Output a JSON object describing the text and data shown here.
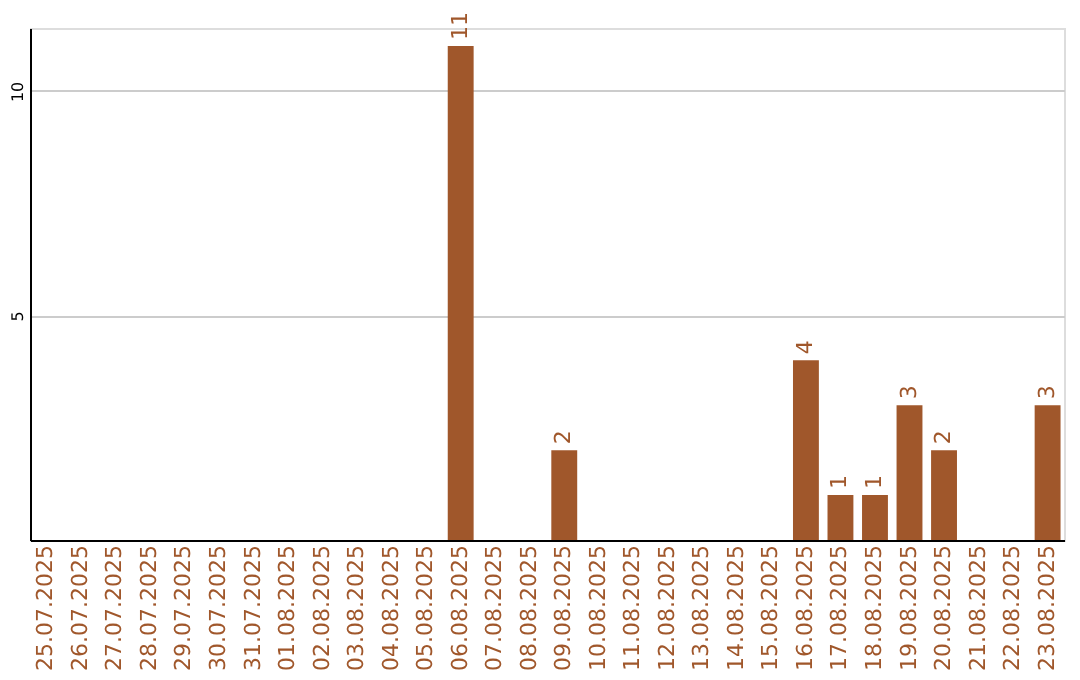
{
  "chart_data": {
    "type": "bar",
    "categories": [
      "25.07.2025",
      "26.07.2025",
      "27.07.2025",
      "28.07.2025",
      "29.07.2025",
      "30.07.2025",
      "31.07.2025",
      "01.08.2025",
      "02.08.2025",
      "03.08.2025",
      "04.08.2025",
      "05.08.2025",
      "06.08.2025",
      "07.08.2025",
      "08.08.2025",
      "09.08.2025",
      "10.08.2025",
      "11.08.2025",
      "12.08.2025",
      "13.08.2025",
      "14.08.2025",
      "15.08.2025",
      "16.08.2025",
      "17.08.2025",
      "18.08.2025",
      "19.08.2025",
      "20.08.2025",
      "21.08.2025",
      "22.08.2025",
      "23.08.2025"
    ],
    "values": [
      0,
      0,
      0,
      0,
      0,
      0,
      0,
      0,
      0,
      0,
      0,
      0,
      11,
      0,
      0,
      2,
      0,
      0,
      0,
      0,
      0,
      0,
      4,
      1,
      1,
      3,
      2,
      0,
      0,
      3
    ],
    "value_labels": [
      null,
      null,
      null,
      null,
      null,
      null,
      null,
      null,
      null,
      null,
      null,
      null,
      "11",
      null,
      null,
      "2",
      null,
      null,
      null,
      null,
      null,
      null,
      "4",
      "1",
      "1",
      "3",
      "2",
      null,
      null,
      "3"
    ],
    "color": "#a0572b",
    "ylim": [
      0,
      11.4
    ],
    "yticks": [
      5,
      10
    ],
    "grid": "y"
  }
}
